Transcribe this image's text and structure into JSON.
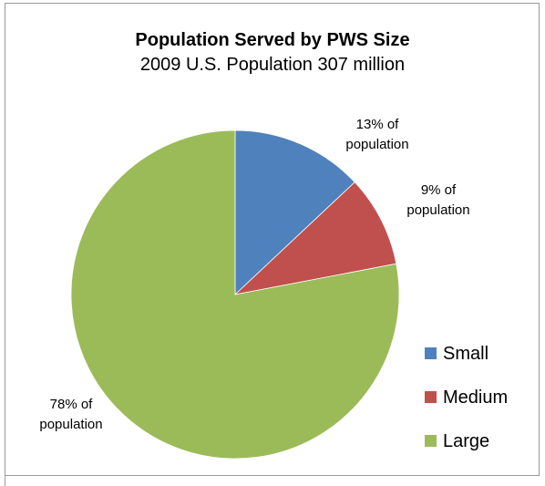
{
  "chart_data": {
    "type": "pie",
    "title": "Population Served by PWS Size",
    "subtitle": "2009 U.S. Population 307 million",
    "categories": [
      "Small",
      "Medium",
      "Large"
    ],
    "values": [
      13,
      9,
      78
    ],
    "colors": [
      "#4f81bd",
      "#c0504d",
      "#9bbb59"
    ],
    "data_labels": [
      [
        "13% of",
        "population"
      ],
      [
        "9%  of",
        "population"
      ],
      [
        "78% of",
        "population"
      ]
    ],
    "legend_position": "right"
  }
}
